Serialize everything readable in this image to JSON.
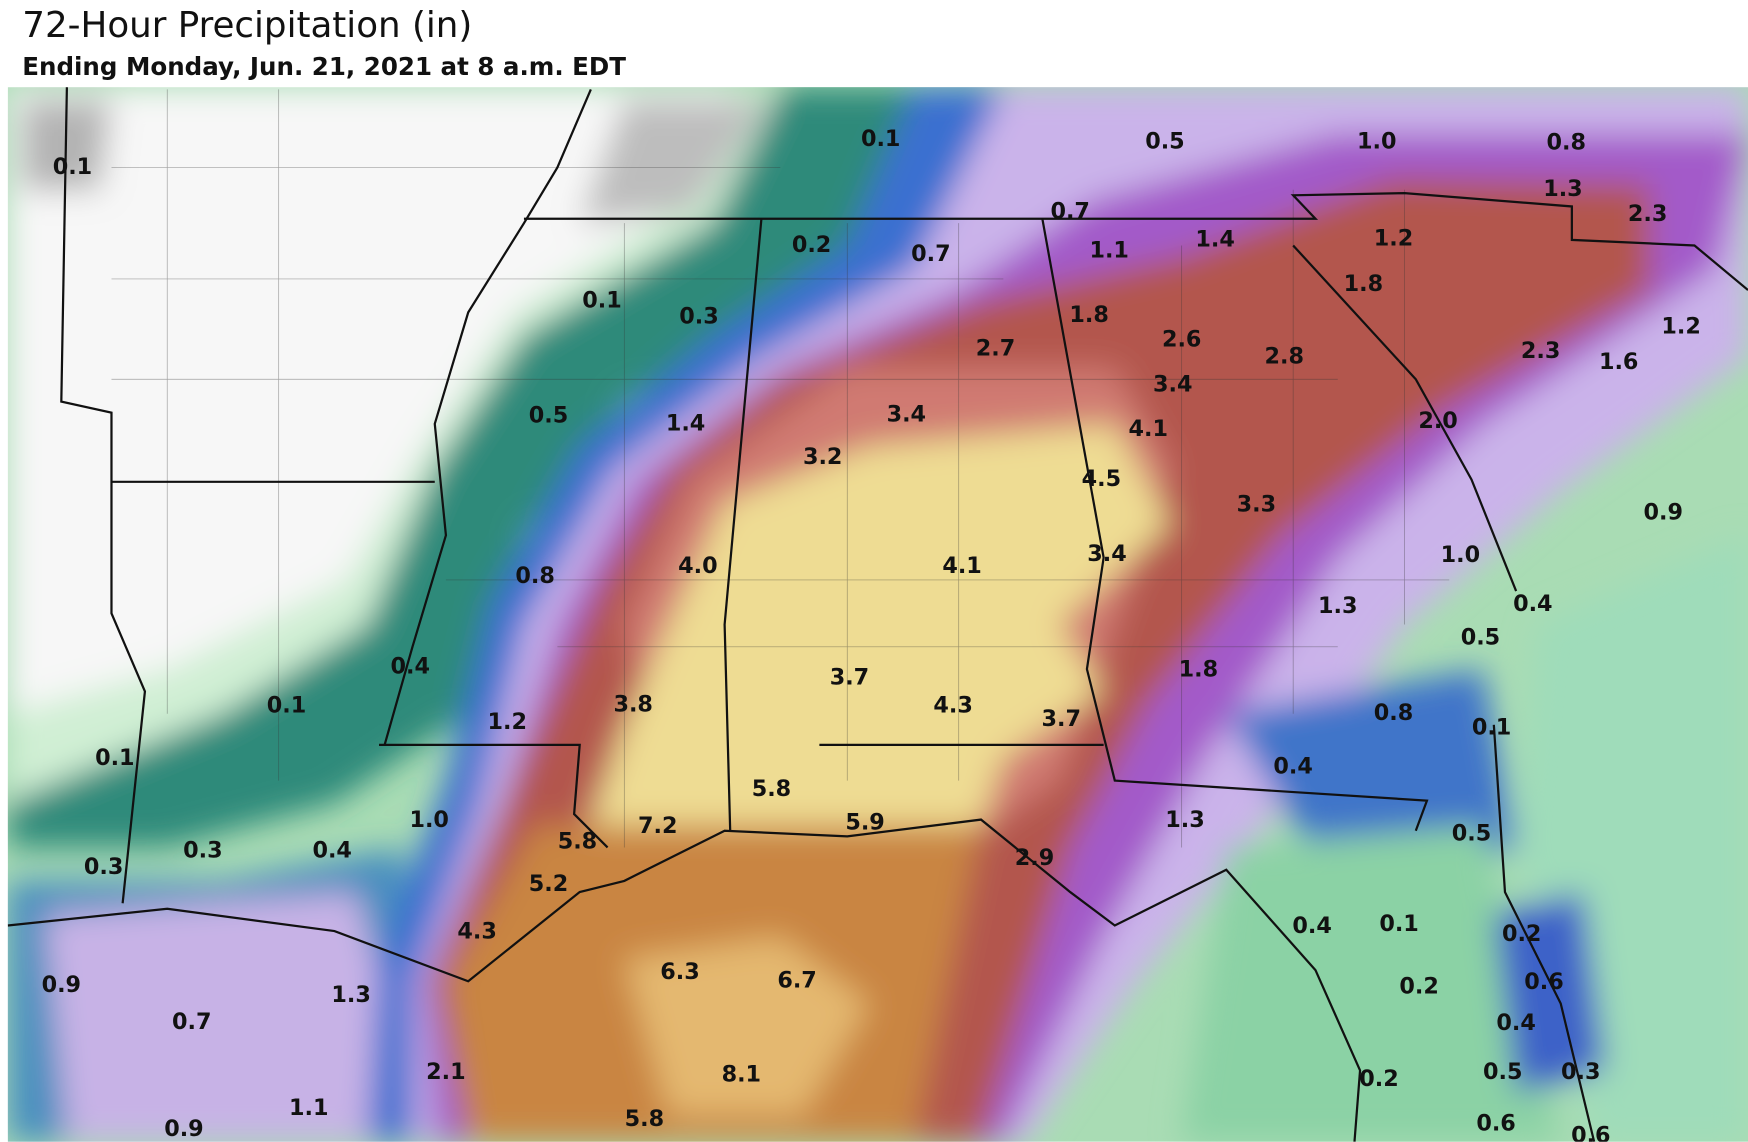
{
  "header": {
    "title": "72-Hour Precipitation (in)",
    "subtitle": "Ending Monday, Jun. 21, 2021 at 8 a.m. EDT"
  },
  "map": {
    "labels": [
      "0.1",
      "0.1",
      "0.5",
      "1.0",
      "0.8",
      "1.3",
      "2.3",
      "0.7",
      "1.1",
      "1.4",
      "1.2",
      "0.2",
      "0.7",
      "0.1",
      "0.3",
      "1.8",
      "1.8",
      "2.7",
      "2.6",
      "2.8",
      "2.3",
      "1.2",
      "1.6",
      "3.4",
      "0.5",
      "1.4",
      "3.4",
      "4.1",
      "2.0",
      "3.2",
      "4.5",
      "3.3",
      "0.9",
      "0.8",
      "4.0",
      "4.1",
      "3.4",
      "1.0",
      "1.3",
      "0.4",
      "0.5",
      "0.4",
      "0.1",
      "3.8",
      "3.7",
      "4.3",
      "3.7",
      "1.8",
      "0.8",
      "0.1",
      "1.2",
      "0.1",
      "5.8",
      "0.4",
      "1.0",
      "7.2",
      "5.9",
      "1.3",
      "0.5",
      "0.3",
      "0.3",
      "0.4",
      "5.8",
      "2.9",
      "5.2",
      "4.3",
      "0.4",
      "0.1",
      "0.2",
      "0.9",
      "1.3",
      "6.3",
      "6.7",
      "0.2",
      "0.6",
      "0.7",
      "0.4",
      "2.1",
      "8.1",
      "0.2",
      "0.5",
      "0.3",
      "1.1",
      "0.9",
      "5.8",
      "0.6",
      "0.6"
    ]
  }
}
